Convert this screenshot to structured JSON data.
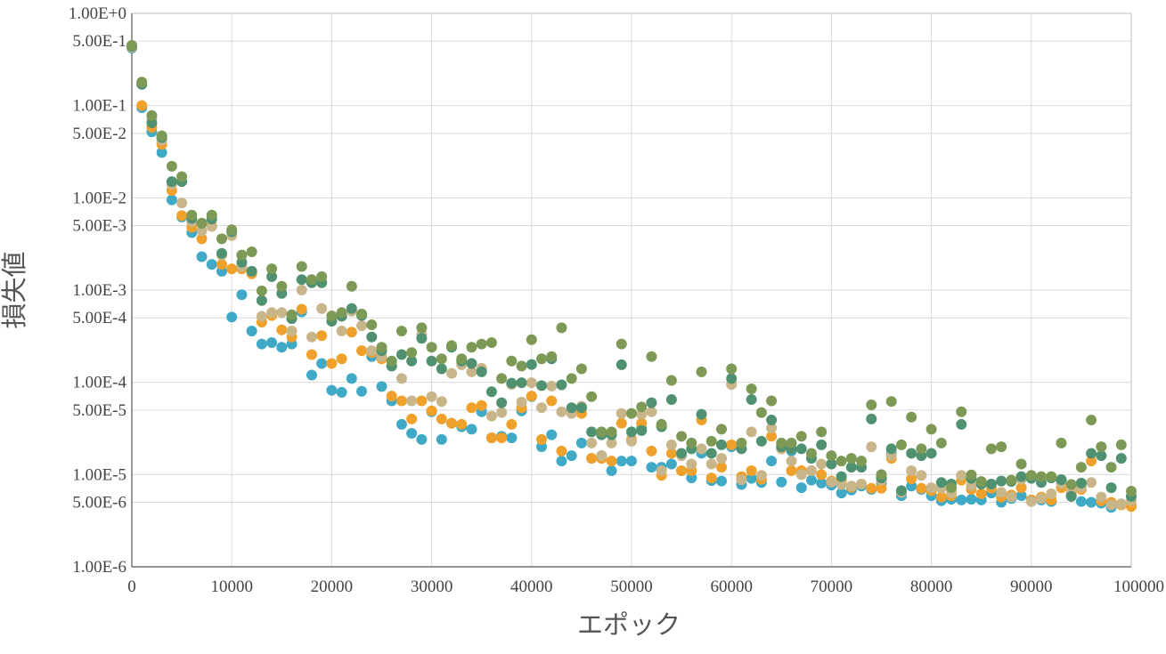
{
  "chart_data": {
    "type": "scatter",
    "title": "",
    "xlabel": "エポック",
    "ylabel": "損失値",
    "xlim": [
      0,
      100000
    ],
    "ylim": [
      1e-06,
      1
    ],
    "yscale": "log",
    "grid": true,
    "x_ticks": [
      0,
      10000,
      20000,
      30000,
      40000,
      50000,
      60000,
      70000,
      80000,
      90000,
      100000
    ],
    "x_tick_labels": [
      "0",
      "10000",
      "20000",
      "30000",
      "40000",
      "50000",
      "60000",
      "70000",
      "80000",
      "90000",
      "100000"
    ],
    "y_ticks": [
      1,
      0.5,
      0.1,
      0.05,
      0.01,
      0.005,
      0.001,
      0.0005,
      0.0001,
      5e-05,
      1e-05,
      5e-06,
      1e-06
    ],
    "y_tick_labels": [
      "1.00E+0",
      "5.00E-1",
      "1.00E-1",
      "5.00E-2",
      "1.00E-2",
      "5.00E-3",
      "1.00E-3",
      "5.00E-4",
      "1.00E-4",
      "5.00E-5",
      "1.00E-5",
      "5.00E-6",
      "1.00E-6"
    ],
    "x": [
      0,
      1000,
      2000,
      3000,
      4000,
      5000,
      6000,
      7000,
      8000,
      9000,
      10000,
      11000,
      12000,
      13000,
      14000,
      15000,
      16000,
      17000,
      18000,
      19000,
      20000,
      21000,
      22000,
      23000,
      24000,
      25000,
      26000,
      27000,
      28000,
      29000,
      30000,
      31000,
      32000,
      33000,
      34000,
      35000,
      36000,
      37000,
      38000,
      39000,
      40000,
      41000,
      42000,
      43000,
      44000,
      45000,
      46000,
      47000,
      48000,
      49000,
      50000,
      51000,
      52000,
      53000,
      54000,
      55000,
      56000,
      57000,
      58000,
      59000,
      60000,
      61000,
      62000,
      63000,
      64000,
      65000,
      66000,
      67000,
      68000,
      69000,
      70000,
      71000,
      72000,
      73000,
      74000,
      75000,
      76000,
      77000,
      78000,
      79000,
      80000,
      81000,
      82000,
      83000,
      84000,
      85000,
      86000,
      87000,
      88000,
      89000,
      90000,
      91000,
      92000,
      93000,
      94000,
      95000,
      96000,
      97000,
      98000,
      99000,
      100000
    ],
    "series": [
      {
        "color": "#3fa9c6",
        "values": [
          0.42,
          0.095,
          0.052,
          0.031,
          0.0095,
          0.0062,
          0.0042,
          0.0023,
          0.0019,
          0.0016,
          0.00051,
          0.00089,
          0.00036,
          0.00026,
          0.00027,
          0.00024,
          0.00026,
          0.00058,
          0.00012,
          0.00016,
          8.2e-05,
          7.8e-05,
          0.00011,
          8e-05,
          0.00019,
          9e-05,
          6.3e-05,
          3.5e-05,
          2.8e-05,
          2.4e-05,
          4.8e-05,
          2.4e-05,
          3.6e-05,
          3.3e-05,
          3.1e-05,
          4.8e-05,
          2.5e-05,
          2.6e-05,
          2.5e-05,
          4.9e-05,
          7e-05,
          2e-05,
          2.7e-05,
          1.4e-05,
          1.6e-05,
          2.2e-05,
          1.5e-05,
          1.6e-05,
          1.1e-05,
          1.4e-05,
          1.4e-05,
          3.2e-05,
          1.2e-05,
          1.2e-05,
          1.3e-05,
          1.1e-05,
          9.2e-06,
          1.7e-05,
          8.6e-06,
          8.5e-06,
          2e-05,
          7.8e-06,
          9.1e-06,
          8.2e-06,
          1.4e-05,
          8.3e-06,
          1.8e-05,
          7.2e-06,
          8.7e-06,
          8.1e-06,
          7.7e-06,
          6.3e-06,
          6.8e-06,
          7.5e-06,
          6.9e-06,
          8.1e-06,
          1.7e-05,
          5.9e-06,
          7.5e-06,
          6.9e-06,
          5.9e-06,
          5.2e-06,
          5.4e-06,
          5.3e-06,
          5.4e-06,
          5.3e-06,
          6.3e-06,
          5e-06,
          5.5e-06,
          5.9e-06,
          5.3e-06,
          5.3e-06,
          5.1e-06,
          8.8e-06,
          5.9e-06,
          5.1e-06,
          5e-06,
          4.9e-06,
          4.4e-06,
          4.8e-06,
          4.6e-06
        ]
      },
      {
        "color": "#efa12c",
        "values": [
          0.43,
          0.1,
          0.058,
          0.038,
          0.012,
          0.0064,
          0.0048,
          0.0036,
          0.005,
          0.0019,
          0.0017,
          0.0017,
          0.0015,
          0.00045,
          0.00053,
          0.00037,
          0.00031,
          0.00062,
          0.0002,
          0.00032,
          0.00016,
          0.00018,
          0.00035,
          0.00022,
          0.00021,
          0.00018,
          7.1e-05,
          6.3e-05,
          4e-05,
          6.3e-05,
          4.9e-05,
          4e-05,
          3.6e-05,
          3.5e-05,
          5.3e-05,
          5.6e-05,
          2.5e-05,
          2.5e-05,
          3.5e-05,
          5.3e-05,
          7.1e-05,
          2.4e-05,
          6.3e-05,
          1.8e-05,
          4.9e-05,
          4.6e-05,
          1.5e-05,
          1.5e-05,
          1.4e-05,
          3.6e-05,
          2.4e-05,
          3.6e-05,
          1.8e-05,
          9.8e-06,
          1.7e-05,
          1.1e-05,
          1.1e-05,
          3.9e-05,
          9.2e-06,
          1.2e-05,
          2.1e-05,
          9.5e-06,
          1.1e-05,
          8.9e-06,
          2.6e-05,
          1.9e-05,
          1.1e-05,
          1.1e-05,
          1.1e-05,
          1e-05,
          8.5e-06,
          8.5e-06,
          7.3e-06,
          7.9e-06,
          7.1e-06,
          7.1e-06,
          1.5e-05,
          6.5e-06,
          9e-06,
          7.1e-06,
          6.7e-06,
          5.7e-06,
          5.9e-06,
          8.7e-06,
          6.9e-06,
          6.2e-06,
          7.1e-06,
          5.7e-06,
          6e-06,
          7.2e-06,
          5.3e-06,
          5.7e-06,
          5.3e-06,
          7.2e-06,
          6.1e-06,
          6.9e-06,
          1.4e-05,
          5.2e-06,
          5e-06,
          4.7e-06,
          4.5e-06
        ]
      },
      {
        "color": "#c9b58a",
        "values": [
          0.43,
          0.17,
          0.072,
          0.042,
          0.014,
          0.0088,
          0.0055,
          0.0044,
          0.0049,
          0.0024,
          0.0039,
          0.0018,
          0.0016,
          0.00052,
          0.00057,
          0.00057,
          0.00036,
          0.001,
          0.00031,
          0.00063,
          0.00053,
          0.00036,
          0.00059,
          0.00041,
          0.00022,
          0.00019,
          0.00015,
          0.00011,
          6.3e-05,
          0.00033,
          7e-05,
          6.2e-05,
          0.000125,
          0.000155,
          0.00013,
          0.000142,
          4.3e-05,
          4.7e-05,
          9.5e-05,
          6.1e-05,
          9.9e-05,
          5.3e-05,
          9.1e-05,
          4.8e-05,
          4.6e-05,
          5.5e-05,
          2.2e-05,
          1.6e-05,
          2.2e-05,
          4.6e-05,
          2.3e-05,
          4.5e-05,
          4.8e-05,
          1.1e-05,
          2.1e-05,
          1.6e-05,
          1.3e-05,
          1.9e-05,
          1.3e-05,
          1.5e-05,
          9.5e-05,
          8.8e-06,
          2.9e-05,
          9.8e-06,
          3.2e-05,
          1.9e-05,
          1.4e-05,
          1e-05,
          1.1e-05,
          1.3e-05,
          8.3e-06,
          7.8e-06,
          7.5e-06,
          7.9e-06,
          2e-05,
          8.7e-06,
          1.6e-05,
          6.4e-06,
          1.1e-05,
          9.8e-06,
          7.2e-06,
          7.1e-06,
          6.3e-06,
          9.8e-06,
          7.6e-06,
          8.2e-06,
          7.8e-06,
          6.4e-06,
          5.7e-06,
          8.9e-06,
          5.1e-06,
          5.5e-06,
          6.2e-06,
          8e-06,
          6.6e-06,
          7.3e-06,
          8.2e-06,
          5.7e-06,
          4.7e-06,
          4.8e-06,
          5.2e-06
        ]
      },
      {
        "color": "#4f9170",
        "values": [
          0.44,
          0.17,
          0.065,
          0.045,
          0.015,
          0.015,
          0.006,
          0.0053,
          0.0059,
          0.0025,
          0.0043,
          0.002,
          0.0016,
          0.00077,
          0.0014,
          0.00092,
          0.00049,
          0.0013,
          0.0012,
          0.0012,
          0.00046,
          0.00052,
          0.00063,
          0.00053,
          0.00031,
          0.00022,
          0.00015,
          0.0002,
          0.00017,
          0.0003,
          0.00017,
          0.00014,
          0.00024,
          0.00017,
          0.00016,
          0.00013,
          7.9e-05,
          6e-05,
          9.8e-05,
          9.9e-05,
          0.000156,
          9.2e-05,
          0.00018,
          9.4e-05,
          5.3e-05,
          5.3e-05,
          2.9e-05,
          2.7e-05,
          2.7e-05,
          0.000155,
          2.9e-05,
          3e-05,
          6e-05,
          3.3e-05,
          6.5e-05,
          1.7e-05,
          1.9e-05,
          4.5e-05,
          1.7e-05,
          2.1e-05,
          0.00011,
          1.9e-05,
          6.5e-05,
          2.3e-05,
          3.9e-05,
          2e-05,
          1.9e-05,
          1.9e-05,
          1.5e-05,
          2.1e-05,
          1.3e-05,
          9.5e-06,
          1.2e-05,
          1.2e-05,
          4e-05,
          9.2e-06,
          1.9e-05,
          6.7e-06,
          1.7e-05,
          1.6e-05,
          1.7e-05,
          8.2e-06,
          7.9e-06,
          3.5e-05,
          9.1e-06,
          7.9e-06,
          7.9e-06,
          8.5e-06,
          8.4e-06,
          9.5e-06,
          9.1e-06,
          8.2e-06,
          9.2e-06,
          8.8e-06,
          5.8e-06,
          8.1e-06,
          1.7e-05,
          1.6e-05,
          7.2e-06,
          1.5e-05,
          5.8e-06
        ]
      },
      {
        "color": "#7c9a56",
        "values": [
          0.45,
          0.18,
          0.078,
          0.047,
          0.022,
          0.017,
          0.0065,
          0.0053,
          0.0065,
          0.0036,
          0.0045,
          0.0024,
          0.0026,
          0.00098,
          0.0017,
          0.0011,
          0.00054,
          0.0018,
          0.0013,
          0.0014,
          0.00052,
          0.00057,
          0.0011,
          0.00055,
          0.00042,
          0.00024,
          0.00017,
          0.00036,
          0.00021,
          0.00039,
          0.00024,
          0.00018,
          0.00025,
          0.00018,
          0.00024,
          0.00026,
          0.00027,
          0.00011,
          0.00017,
          0.00015,
          0.00029,
          0.00018,
          0.00019,
          0.00039,
          0.00011,
          0.00014,
          7e-05,
          2.9e-05,
          2.9e-05,
          0.00026,
          4.6e-05,
          5.4e-05,
          0.00019,
          3.5e-05,
          0.000105,
          2.6e-05,
          2.2e-05,
          0.00013,
          2.3e-05,
          3.1e-05,
          0.00014,
          2.2e-05,
          8.5e-05,
          4.7e-05,
          6.3e-05,
          2.2e-05,
          2.2e-05,
          2.6e-05,
          1.7e-05,
          2.9e-05,
          1.6e-05,
          1.4e-05,
          1.5e-05,
          1.4e-05,
          5.7e-05,
          1e-05,
          6.2e-05,
          2.1e-05,
          4.2e-05,
          1.9e-05,
          3.1e-05,
          2.2e-05,
          7.2e-06,
          4.8e-05,
          9.9e-06,
          8.4e-06,
          1.9e-05,
          2e-05,
          8.7e-06,
          1.3e-05,
          9.8e-06,
          9.5e-06,
          9.5e-06,
          2.2e-05,
          7.8e-06,
          1.2e-05,
          3.9e-05,
          2e-05,
          1.2e-05,
          2.1e-05,
          6.6e-06
        ]
      }
    ]
  }
}
